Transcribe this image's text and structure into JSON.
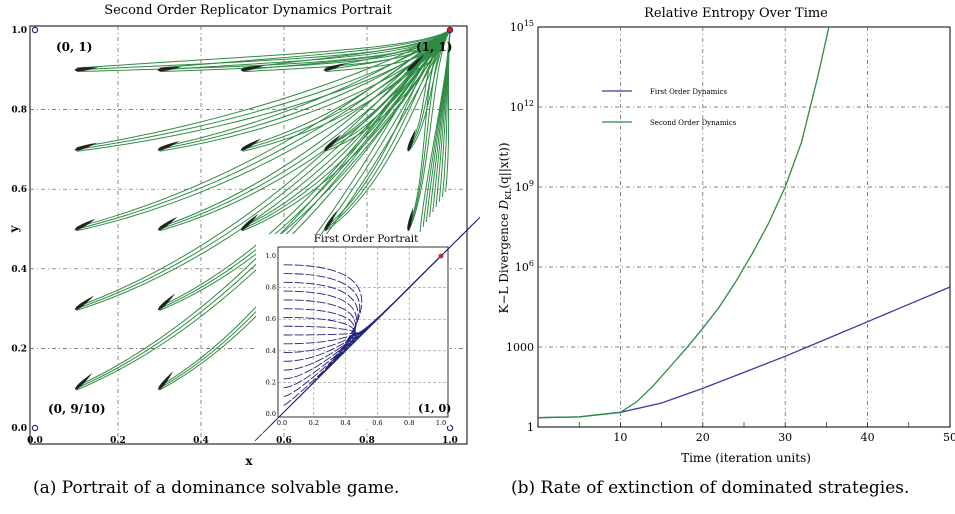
{
  "captions": {
    "a": "(a)  Portrait of a dominance solvable game.",
    "b": "(b)  Rate of extinction of dominated strategies."
  },
  "chart_data": [
    {
      "type": "vector_field",
      "title": "Second Order Replicator Dynamics Portrait",
      "xlabel": "x",
      "ylabel": "y",
      "xlim": [
        0,
        1
      ],
      "ylim": [
        0,
        1
      ],
      "x_ticks": [
        "0.0",
        "0.2",
        "0.4",
        "0.6",
        "0.8",
        "1.0"
      ],
      "y_ticks": [
        "0.0",
        "0.2",
        "0.4",
        "0.6",
        "0.8",
        "1.0"
      ],
      "grid": true,
      "point_labels": {
        "top_left": "(0, 1)",
        "top_right": "(1, 1)",
        "bottom_left": "(0, 9/10)"
      },
      "attractor": [
        1,
        1
      ],
      "start_points": [
        [
          0.1,
          0.9
        ],
        [
          0.3,
          0.9
        ],
        [
          0.5,
          0.9
        ],
        [
          0.7,
          0.9
        ],
        [
          0.9,
          0.9
        ],
        [
          0.1,
          0.7
        ],
        [
          0.3,
          0.7
        ],
        [
          0.5,
          0.7
        ],
        [
          0.7,
          0.7
        ],
        [
          0.9,
          0.7
        ],
        [
          0.1,
          0.5
        ],
        [
          0.3,
          0.5
        ],
        [
          0.5,
          0.5
        ],
        [
          0.7,
          0.5
        ],
        [
          0.9,
          0.5
        ],
        [
          0.1,
          0.3
        ],
        [
          0.3,
          0.3
        ],
        [
          0.1,
          0.1
        ],
        [
          0.3,
          0.1
        ]
      ],
      "trajectory_color": "#2e8b44",
      "inset": {
        "title": "First Order Portrait",
        "x_ticks": [
          "0.0",
          "0.2",
          "0.4",
          "0.6",
          "0.8",
          "1.0"
        ],
        "y_ticks": [
          "0.0",
          "0.2",
          "0.4",
          "0.6",
          "0.8",
          "1.0"
        ],
        "corner_label": "(1, 0)",
        "trajectory_color": "#23237a",
        "dominant_point_color": "#cc2222"
      }
    },
    {
      "type": "line",
      "title": "Relative Entropy Over Time",
      "xlabel": "Time (iteration units)",
      "ylabel_prefix": "K−L Divergence ",
      "ylabel_symbol": "D",
      "ylabel_subscript": "KL",
      "ylabel_suffix": "(q||x(t))",
      "xlim": [
        0,
        50
      ],
      "ylim_log10": [
        0,
        15
      ],
      "y_scale": "log",
      "x_ticks": [
        "10",
        "20",
        "30",
        "40",
        "50"
      ],
      "y_ticks": [
        {
          "base": "1",
          "exp": ""
        },
        {
          "base": "1000",
          "exp": ""
        },
        {
          "base": "10",
          "exp": "6"
        },
        {
          "base": "10",
          "exp": "9"
        },
        {
          "base": "10",
          "exp": "12"
        },
        {
          "base": "10",
          "exp": "15"
        }
      ],
      "grid": true,
      "legend_position": "upper-left",
      "series": [
        {
          "name": "First Order Dynamics",
          "color": "#3a3aa0",
          "x": [
            0,
            5,
            10,
            15,
            20,
            25,
            30,
            35,
            40,
            45,
            50
          ],
          "log10_y": [
            0.35,
            0.38,
            0.55,
            0.9,
            1.45,
            2.05,
            2.65,
            3.3,
            3.95,
            4.6,
            5.25
          ]
        },
        {
          "name": "Second Order Dynamics",
          "color": "#2e8b44",
          "x": [
            0,
            5,
            10,
            12,
            14,
            16,
            18,
            20,
            22,
            24,
            26,
            28,
            30,
            32,
            34,
            35.3
          ],
          "log10_y": [
            0.35,
            0.38,
            0.55,
            0.95,
            1.55,
            2.25,
            2.95,
            3.7,
            4.5,
            5.45,
            6.5,
            7.65,
            9.0,
            10.7,
            13.2,
            15
          ]
        }
      ]
    }
  ]
}
